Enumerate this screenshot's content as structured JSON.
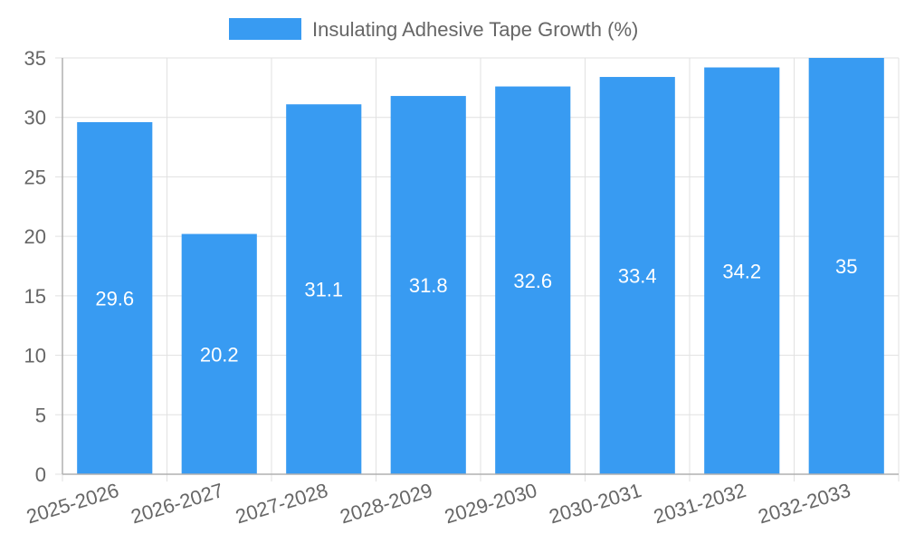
{
  "chart_data": {
    "type": "bar",
    "categories": [
      "2025-2026",
      "2026-2027",
      "2027-2028",
      "2028-2029",
      "2029-2030",
      "2030-2031",
      "2031-2032",
      "2032-2033"
    ],
    "series": [
      {
        "name": "Insulating Adhesive Tape Growth (%)",
        "values": [
          29.6,
          20.2,
          31.1,
          31.8,
          32.6,
          33.4,
          34.2,
          35
        ],
        "color": "#389BF2"
      }
    ],
    "data_labels": [
      "29.6",
      "20.2",
      "31.1",
      "31.8",
      "32.6",
      "33.4",
      "34.2",
      "35"
    ],
    "y_ticks": [
      "0",
      "5",
      "10",
      "15",
      "20",
      "25",
      "30",
      "35"
    ],
    "ylim": [
      0,
      35
    ],
    "grid": true,
    "legend": "top-center",
    "title": "",
    "xlabel": "",
    "ylabel": ""
  },
  "colors": {
    "bar": "#389BF2",
    "grid": "#e1e1e1",
    "axis": "#b0b0b0",
    "tick_text": "#666666",
    "label_text": "#ffffff"
  }
}
